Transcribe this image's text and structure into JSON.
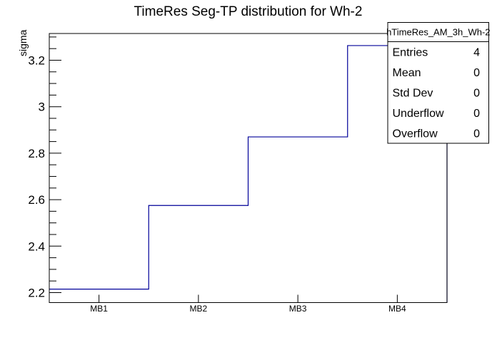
{
  "page": {
    "background": "#ffffff"
  },
  "chart_data": {
    "type": "step-histogram",
    "title": "TimeRes Seg-TP distribution for Wh-2",
    "ylabel": "sigma",
    "xlabel": "",
    "categories": [
      "MB1",
      "MB2",
      "MB3",
      "MB4"
    ],
    "values": [
      2.215,
      2.575,
      2.87,
      3.263
    ],
    "ylim": [
      2.157,
      3.315
    ],
    "y_major_ticks": [
      2.2,
      2.4,
      2.6,
      2.8,
      3.0,
      3.2
    ],
    "y_major_labels": [
      "2.2",
      "2.4",
      "2.6",
      "2.8",
      "3",
      "3.2"
    ],
    "y_minor_step": 0.05,
    "grid": false,
    "legend_position": "none",
    "line_color": "#000099",
    "frame_color": "#000000"
  },
  "stats_box": {
    "header": "hTimeRes_AM_3h_Wh-2",
    "rows": [
      {
        "label": "Entries",
        "value": "4"
      },
      {
        "label": "Mean",
        "value": "0"
      },
      {
        "label": "Std Dev",
        "value": "0"
      },
      {
        "label": "Underflow",
        "value": "0"
      },
      {
        "label": "Overflow",
        "value": "0"
      }
    ]
  }
}
